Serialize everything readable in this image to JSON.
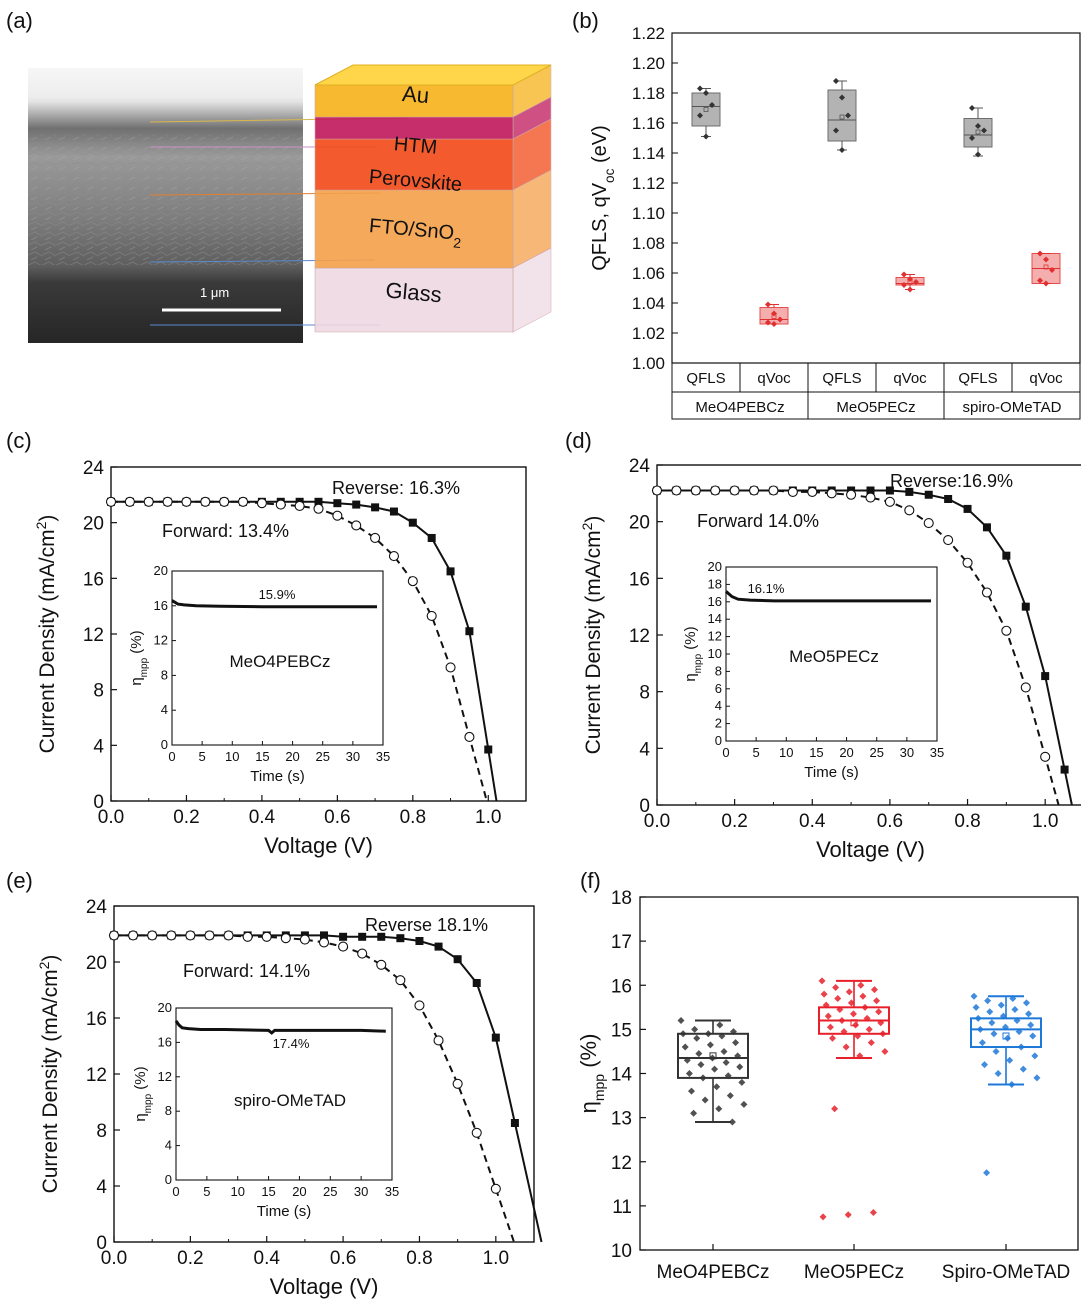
{
  "panel_labels": {
    "a": "(a)",
    "b": "(b)",
    "c": "(c)",
    "d": "(d)",
    "e": "(e)",
    "f": "(f)"
  },
  "colors": {
    "gray_fill": "#a6a6a6",
    "red_fill": "#f4a0a0",
    "red_stroke": "#e03030",
    "blue": "#1e78d8",
    "dark": "#333333",
    "red_points": "#e8202a"
  },
  "icons": [
    "sem-crosssection-image",
    "device-stack-icon"
  ],
  "panel_a": {
    "scale_bar": "1 μm",
    "layers": [
      {
        "name": "Au",
        "color": "#f6b21a"
      },
      {
        "name": "HTM",
        "color": "#c0185c"
      },
      {
        "name": "Perovskite",
        "color": "#f24a18"
      },
      {
        "name": "FTO/SnO",
        "sub": "2",
        "color": "#f5a04a"
      },
      {
        "name": "Glass",
        "color": "#eed9e2"
      }
    ]
  },
  "chart_data": [
    {
      "id": "b",
      "type": "box",
      "ylabel": "QFLS, qV",
      "ylabel_sub": "oc",
      "ylabel_unit": " (eV)",
      "ylim": [
        1.0,
        1.22
      ],
      "yticks": [
        "1.00",
        "1.02",
        "1.04",
        "1.06",
        "1.08",
        "1.10",
        "1.12",
        "1.14",
        "1.16",
        "1.18",
        "1.20",
        "1.22"
      ],
      "groups": [
        "MeO4PEBCz",
        "MeO5PECz",
        "spiro-OMeTAD"
      ],
      "subcategories": [
        "QFLS",
        "qVoc",
        "QFLS",
        "qVoc",
        "QFLS",
        "qVoc"
      ],
      "boxes": [
        {
          "label": "QFLS",
          "group": "MeO4PEBCz",
          "min": 1.151,
          "q1": 1.158,
          "median": 1.171,
          "mean": 1.169,
          "q3": 1.18,
          "max": 1.183,
          "points": [
            1.183,
            1.18,
            1.172,
            1.165,
            1.151
          ],
          "kind": "gray"
        },
        {
          "label": "qVoc",
          "group": "MeO4PEBCz",
          "min": 1.026,
          "q1": 1.026,
          "median": 1.029,
          "mean": 1.031,
          "q3": 1.037,
          "max": 1.039,
          "points": [
            1.039,
            1.033,
            1.029,
            1.027,
            1.026
          ],
          "kind": "red"
        },
        {
          "label": "QFLS",
          "group": "MeO5PECz",
          "min": 1.142,
          "q1": 1.148,
          "median": 1.162,
          "mean": 1.164,
          "q3": 1.182,
          "max": 1.188,
          "points": [
            1.188,
            1.177,
            1.165,
            1.155,
            1.142
          ],
          "kind": "gray"
        },
        {
          "label": "qVoc",
          "group": "MeO5PECz",
          "min": 1.049,
          "q1": 1.052,
          "median": 1.053,
          "mean": 1.054,
          "q3": 1.057,
          "max": 1.059,
          "points": [
            1.059,
            1.056,
            1.054,
            1.052,
            1.049
          ],
          "kind": "red"
        },
        {
          "label": "QFLS",
          "group": "spiro-OMeTAD",
          "min": 1.138,
          "q1": 1.144,
          "median": 1.152,
          "mean": 1.154,
          "q3": 1.163,
          "max": 1.17,
          "points": [
            1.17,
            1.158,
            1.155,
            1.15,
            1.139
          ],
          "kind": "gray"
        },
        {
          "label": "qVoc",
          "group": "spiro-OMeTAD",
          "min": 1.053,
          "q1": 1.053,
          "median": 1.063,
          "mean": 1.064,
          "q3": 1.073,
          "max": 1.073,
          "points": [
            1.073,
            1.069,
            1.062,
            1.055,
            1.053
          ],
          "kind": "red"
        }
      ]
    },
    {
      "id": "c",
      "type": "line",
      "xlabel": "Voltage (V)",
      "ylabel": "Current Density (mA/cm",
      "ylabel_sup": "2",
      "ylabel_end": ")",
      "xlim": [
        0,
        1.1
      ],
      "ylim": [
        0,
        24
      ],
      "xticks": [
        "0.0",
        "0.2",
        "0.4",
        "0.6",
        "0.8",
        "1.0"
      ],
      "yticks": [
        "0",
        "4",
        "8",
        "12",
        "16",
        "20",
        "24"
      ],
      "series": [
        {
          "name": "Reverse: 16.3%",
          "style": "solid",
          "marker": "square",
          "x": [
            0,
            0.05,
            0.1,
            0.15,
            0.2,
            0.25,
            0.3,
            0.35,
            0.4,
            0.45,
            0.5,
            0.55,
            0.6,
            0.65,
            0.7,
            0.75,
            0.8,
            0.85,
            0.9,
            0.95,
            1.0
          ],
          "y": [
            21.5,
            21.5,
            21.5,
            21.5,
            21.5,
            21.5,
            21.5,
            21.5,
            21.5,
            21.5,
            21.5,
            21.5,
            21.4,
            21.3,
            21.1,
            20.8,
            20.0,
            18.9,
            16.5,
            12.2,
            3.7
          ]
        },
        {
          "name": "Forward: 13.4%",
          "style": "dashed",
          "marker": "circle",
          "x": [
            0,
            0.05,
            0.1,
            0.15,
            0.2,
            0.25,
            0.3,
            0.35,
            0.4,
            0.45,
            0.5,
            0.55,
            0.6,
            0.65,
            0.7,
            0.75,
            0.8,
            0.85,
            0.9,
            0.95
          ],
          "y": [
            21.5,
            21.5,
            21.5,
            21.5,
            21.5,
            21.5,
            21.5,
            21.5,
            21.4,
            21.3,
            21.2,
            21.0,
            20.5,
            19.8,
            18.9,
            17.6,
            15.8,
            13.3,
            9.6,
            4.6
          ]
        }
      ],
      "annotations": [
        {
          "text": "Reverse: 16.3%",
          "near": "top-right"
        },
        {
          "text": "Forward: 13.4%",
          "near": "top-left"
        }
      ],
      "inset": {
        "label": "MeO4PEBCz",
        "value_text": "15.9%",
        "xlabel": "Time (s)",
        "ylabel": "η",
        "ylabel_sub": "mpp",
        "ylabel_unit": " (%)",
        "xlim": [
          0,
          35
        ],
        "ylim": [
          0,
          20
        ],
        "xticks": [
          "0",
          "5",
          "10",
          "15",
          "20",
          "25",
          "30",
          "35"
        ],
        "yticks": [
          "0",
          "4",
          "8",
          "12",
          "16",
          "20"
        ],
        "x": [
          0,
          0.5,
          1,
          2,
          4,
          8,
          15,
          20,
          25,
          30,
          34
        ],
        "y": [
          16.6,
          16.4,
          16.2,
          16.1,
          16.0,
          15.95,
          15.9,
          15.9,
          15.9,
          15.9,
          15.9
        ]
      }
    },
    {
      "id": "d",
      "type": "line",
      "xlabel": "Voltage (V)",
      "ylabel": "Current Density (mA/cm",
      "ylabel_sup": "2",
      "ylabel_end": ")",
      "xlim": [
        0,
        1.1
      ],
      "ylim": [
        0,
        24
      ],
      "xticks": [
        "0.0",
        "0.2",
        "0.4",
        "0.6",
        "0.8",
        "1.0"
      ],
      "yticks": [
        "0",
        "4",
        "8",
        "12",
        "16",
        "20",
        "24"
      ],
      "series": [
        {
          "name": "Reverse:16.9%",
          "style": "solid",
          "marker": "square",
          "x": [
            0,
            0.05,
            0.1,
            0.15,
            0.2,
            0.25,
            0.3,
            0.35,
            0.4,
            0.45,
            0.5,
            0.55,
            0.6,
            0.65,
            0.7,
            0.75,
            0.8,
            0.85,
            0.9,
            0.95,
            1.0,
            1.05
          ],
          "y": [
            22.2,
            22.2,
            22.2,
            22.2,
            22.2,
            22.2,
            22.2,
            22.2,
            22.2,
            22.2,
            22.2,
            22.2,
            22.2,
            22.1,
            21.9,
            21.6,
            20.9,
            19.6,
            17.6,
            14.0,
            9.1,
            2.5
          ]
        },
        {
          "name": "Forward 14.0%",
          "style": "dashed",
          "marker": "circle",
          "x": [
            0,
            0.05,
            0.1,
            0.15,
            0.2,
            0.25,
            0.3,
            0.35,
            0.4,
            0.45,
            0.5,
            0.55,
            0.6,
            0.65,
            0.7,
            0.75,
            0.8,
            0.85,
            0.9,
            0.95,
            1.0
          ],
          "y": [
            22.2,
            22.2,
            22.2,
            22.2,
            22.2,
            22.2,
            22.2,
            22.1,
            22.1,
            22.0,
            21.9,
            21.7,
            21.4,
            20.8,
            19.9,
            18.7,
            17.1,
            15.0,
            12.3,
            8.3,
            3.4
          ]
        }
      ],
      "annotations": [
        {
          "text": "Reverse:16.9%",
          "near": "top-right"
        },
        {
          "text": "Forward 14.0%",
          "near": "top-left"
        }
      ],
      "inset": {
        "label": "MeO5PECz",
        "value_text": "16.1%",
        "xlabel": "Time (s)",
        "ylabel": "η",
        "ylabel_sub": "mpp",
        "ylabel_unit": " (%)",
        "xlim": [
          0,
          35
        ],
        "ylim": [
          0,
          20
        ],
        "xticks": [
          "0",
          "5",
          "10",
          "15",
          "20",
          "25",
          "30",
          "35"
        ],
        "yticks": [
          "0",
          "2",
          "4",
          "6",
          "8",
          "10",
          "12",
          "14",
          "16",
          "18",
          "20"
        ],
        "x": [
          0,
          0.5,
          1,
          2,
          4,
          8,
          15,
          20,
          25,
          30,
          34
        ],
        "y": [
          17.2,
          16.9,
          16.6,
          16.3,
          16.2,
          16.1,
          16.1,
          16.1,
          16.1,
          16.1,
          16.1
        ]
      }
    },
    {
      "id": "e",
      "type": "line",
      "xlabel": "Voltage (V)",
      "ylabel": "Current Density (mA/cm",
      "ylabel_sup": "2",
      "ylabel_end": ")",
      "xlim": [
        0,
        1.1
      ],
      "ylim": [
        0,
        24
      ],
      "xticks": [
        "0.0",
        "0.2",
        "0.4",
        "0.6",
        "0.8",
        "1.0"
      ],
      "yticks": [
        "0",
        "4",
        "8",
        "12",
        "16",
        "20",
        "24"
      ],
      "series": [
        {
          "name": "Reverse 18.1%",
          "style": "solid",
          "marker": "square",
          "x": [
            0,
            0.05,
            0.1,
            0.15,
            0.2,
            0.25,
            0.3,
            0.35,
            0.4,
            0.45,
            0.5,
            0.55,
            0.6,
            0.65,
            0.7,
            0.75,
            0.8,
            0.85,
            0.9,
            0.95,
            1.0,
            1.05
          ],
          "y": [
            21.9,
            21.9,
            21.9,
            21.9,
            21.9,
            21.9,
            21.9,
            21.9,
            21.9,
            21.9,
            21.9,
            21.9,
            21.8,
            21.8,
            21.8,
            21.7,
            21.5,
            21.1,
            20.2,
            18.5,
            14.6,
            8.5
          ]
        },
        {
          "name": "Forward: 14.1%",
          "style": "dashed",
          "marker": "circle",
          "x": [
            0,
            0.05,
            0.1,
            0.15,
            0.2,
            0.25,
            0.3,
            0.35,
            0.4,
            0.45,
            0.5,
            0.55,
            0.6,
            0.65,
            0.7,
            0.75,
            0.8,
            0.85,
            0.9,
            0.95,
            1.0
          ],
          "y": [
            21.9,
            21.9,
            21.9,
            21.9,
            21.9,
            21.9,
            21.9,
            21.8,
            21.8,
            21.7,
            21.6,
            21.4,
            21.1,
            20.6,
            19.8,
            18.7,
            16.9,
            14.4,
            11.3,
            7.8,
            3.8
          ]
        }
      ],
      "annotations": [
        {
          "text": "Reverse 18.1%",
          "near": "top-right"
        },
        {
          "text": "Forward: 14.1%",
          "near": "top-left"
        }
      ],
      "inset": {
        "label": "spiro-OMeTAD",
        "value_text": "17.4%",
        "xlabel": "Time (s)",
        "ylabel": "η",
        "ylabel_sub": "mpp",
        "ylabel_unit": " (%)",
        "xlim": [
          0,
          35
        ],
        "ylim": [
          0,
          20
        ],
        "xticks": [
          "0",
          "5",
          "10",
          "15",
          "20",
          "25",
          "30",
          "35"
        ],
        "yticks": [
          "0",
          "4",
          "8",
          "12",
          "16",
          "20"
        ],
        "x": [
          0,
          0.5,
          1,
          2,
          4,
          8,
          15,
          15.5,
          16,
          20,
          25,
          30,
          34
        ],
        "y": [
          18.5,
          18.0,
          17.7,
          17.6,
          17.5,
          17.5,
          17.4,
          17.1,
          17.4,
          17.4,
          17.4,
          17.4,
          17.3
        ]
      }
    },
    {
      "id": "f",
      "type": "box",
      "ylabel": "η",
      "ylabel_sub": "mpp",
      "ylabel_unit": " (%)",
      "ylim": [
        10,
        18
      ],
      "yticks": [
        "10",
        "11",
        "12",
        "13",
        "14",
        "15",
        "16",
        "17",
        "18"
      ],
      "categories": [
        "MeO4PEBCz",
        "MeO5PECz",
        "Spiro-OMeTAD"
      ],
      "boxes": [
        {
          "label": "MeO4PEBCz",
          "min": 12.9,
          "q1": 13.9,
          "median": 14.35,
          "mean": 14.4,
          "q3": 14.9,
          "max": 15.2,
          "color": "#333333",
          "points": [
            15.2,
            15.1,
            15.0,
            14.95,
            14.9,
            14.9,
            14.85,
            14.8,
            14.7,
            14.65,
            14.6,
            14.5,
            14.45,
            14.4,
            14.35,
            14.3,
            14.25,
            14.2,
            14.15,
            14.1,
            14.0,
            13.95,
            13.9,
            13.8,
            13.7,
            13.6,
            13.5,
            13.4,
            13.3,
            13.2,
            13.1,
            12.9
          ]
        },
        {
          "label": "MeO5PECz",
          "min": 14.35,
          "q1": 14.9,
          "median": 15.2,
          "mean": 15.15,
          "q3": 15.5,
          "max": 16.1,
          "color": "#e8202a",
          "points": [
            16.1,
            16.0,
            15.95,
            15.9,
            15.85,
            15.8,
            15.75,
            15.7,
            15.65,
            15.6,
            15.55,
            15.5,
            15.45,
            15.4,
            15.35,
            15.3,
            15.25,
            15.2,
            15.15,
            15.1,
            15.05,
            15.0,
            14.95,
            14.9,
            14.85,
            14.8,
            14.7,
            14.6,
            14.5,
            14.4,
            13.2,
            10.85,
            10.8,
            10.75
          ]
        },
        {
          "label": "Spiro-OMeTAD",
          "min": 13.75,
          "q1": 14.6,
          "median": 15.0,
          "mean": 14.85,
          "q3": 15.25,
          "max": 15.75,
          "color": "#1e78d8",
          "points": [
            15.75,
            15.7,
            15.65,
            15.6,
            15.55,
            15.5,
            15.45,
            15.4,
            15.35,
            15.3,
            15.25,
            15.2,
            15.15,
            15.1,
            15.05,
            15.0,
            14.95,
            14.9,
            14.85,
            14.8,
            14.7,
            14.6,
            14.5,
            14.4,
            14.3,
            14.2,
            14.1,
            14.0,
            13.9,
            13.75,
            11.75
          ]
        }
      ]
    }
  ]
}
